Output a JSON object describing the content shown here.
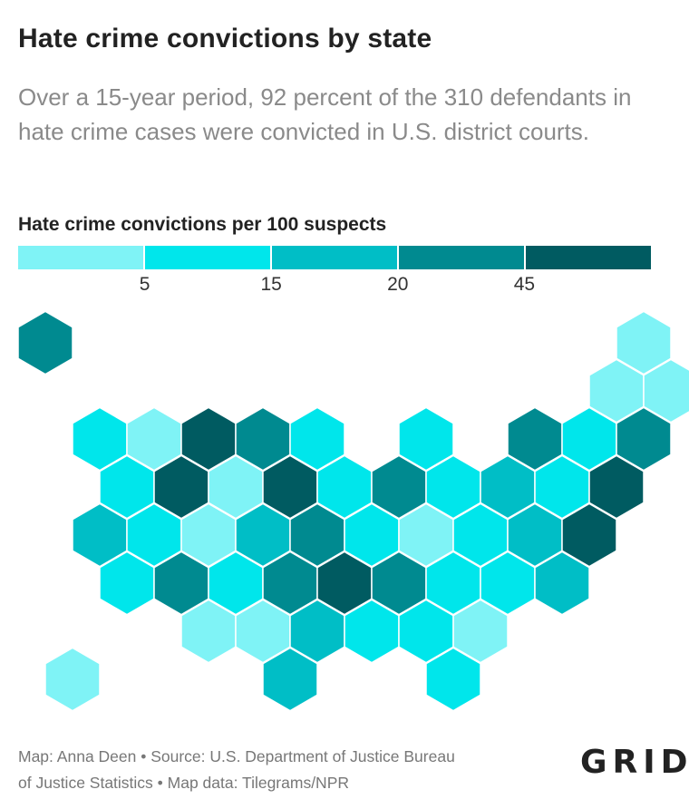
{
  "title": "Hate crime convictions by state",
  "subtitle": "Over a 15-year period, 92 percent of the 310 defendants in hate crime cases were convicted in U.S. district courts.",
  "legend": {
    "title": "Hate crime convictions per 100 suspects",
    "ticks": [
      "5",
      "15",
      "20",
      "45"
    ],
    "bins": [
      {
        "range": "below 5",
        "color": "#7ff3f6"
      },
      {
        "range": "5–15",
        "color": "#00e6eb"
      },
      {
        "range": "15–20",
        "color": "#00bec6"
      },
      {
        "range": "20–45",
        "color": "#008a90"
      },
      {
        "range": "45 and above",
        "color": "#005b61"
      }
    ]
  },
  "map_data": {
    "type": "hexagon tile grid map",
    "cells": [
      {
        "row": 0,
        "col": 0,
        "bin": 3
      },
      {
        "row": 0,
        "col": 11,
        "bin": 0
      },
      {
        "row": 1,
        "col": 10,
        "bin": 0
      },
      {
        "row": 1,
        "col": 11,
        "bin": 0
      },
      {
        "row": 2,
        "col": 1,
        "bin": 1
      },
      {
        "row": 2,
        "col": 2,
        "bin": 0
      },
      {
        "row": 2,
        "col": 3,
        "bin": 4
      },
      {
        "row": 2,
        "col": 4,
        "bin": 3
      },
      {
        "row": 2,
        "col": 5,
        "bin": 1
      },
      {
        "row": 2,
        "col": 7,
        "bin": 1
      },
      {
        "row": 2,
        "col": 9,
        "bin": 3
      },
      {
        "row": 2,
        "col": 10,
        "bin": 1
      },
      {
        "row": 2,
        "col": 11,
        "bin": 3
      },
      {
        "row": 3,
        "col": 1,
        "bin": 1
      },
      {
        "row": 3,
        "col": 2,
        "bin": 4
      },
      {
        "row": 3,
        "col": 3,
        "bin": 0
      },
      {
        "row": 3,
        "col": 4,
        "bin": 4
      },
      {
        "row": 3,
        "col": 5,
        "bin": 1
      },
      {
        "row": 3,
        "col": 6,
        "bin": 3
      },
      {
        "row": 3,
        "col": 7,
        "bin": 1
      },
      {
        "row": 3,
        "col": 8,
        "bin": 2
      },
      {
        "row": 3,
        "col": 9,
        "bin": 1
      },
      {
        "row": 3,
        "col": 10,
        "bin": 4
      },
      {
        "row": 4,
        "col": 1,
        "bin": 2
      },
      {
        "row": 4,
        "col": 2,
        "bin": 1
      },
      {
        "row": 4,
        "col": 3,
        "bin": 0
      },
      {
        "row": 4,
        "col": 4,
        "bin": 2
      },
      {
        "row": 4,
        "col": 5,
        "bin": 3
      },
      {
        "row": 4,
        "col": 6,
        "bin": 1
      },
      {
        "row": 4,
        "col": 7,
        "bin": 0
      },
      {
        "row": 4,
        "col": 8,
        "bin": 1
      },
      {
        "row": 4,
        "col": 9,
        "bin": 2
      },
      {
        "row": 4,
        "col": 10,
        "bin": 4
      },
      {
        "row": 5,
        "col": 1,
        "bin": 1
      },
      {
        "row": 5,
        "col": 2,
        "bin": 3
      },
      {
        "row": 5,
        "col": 3,
        "bin": 1
      },
      {
        "row": 5,
        "col": 4,
        "bin": 3
      },
      {
        "row": 5,
        "col": 5,
        "bin": 4
      },
      {
        "row": 5,
        "col": 6,
        "bin": 3
      },
      {
        "row": 5,
        "col": 7,
        "bin": 1
      },
      {
        "row": 5,
        "col": 8,
        "bin": 1
      },
      {
        "row": 5,
        "col": 9,
        "bin": 2
      },
      {
        "row": 6,
        "col": 3,
        "bin": 0
      },
      {
        "row": 6,
        "col": 4,
        "bin": 0
      },
      {
        "row": 6,
        "col": 5,
        "bin": 2
      },
      {
        "row": 6,
        "col": 6,
        "bin": 1
      },
      {
        "row": 6,
        "col": 7,
        "bin": 1
      },
      {
        "row": 6,
        "col": 8,
        "bin": 0
      },
      {
        "row": 7,
        "col": 0,
        "bin": 0
      },
      {
        "row": 7,
        "col": 4,
        "bin": 2
      },
      {
        "row": 7,
        "col": 7,
        "bin": 1
      }
    ]
  },
  "footer": {
    "line1": "Map: Anna Deen • Source: U.S. Department of Justice Bureau",
    "line2": "of Justice Statistics • Map data: Tilegrams/NPR"
  },
  "logo": "GRID"
}
